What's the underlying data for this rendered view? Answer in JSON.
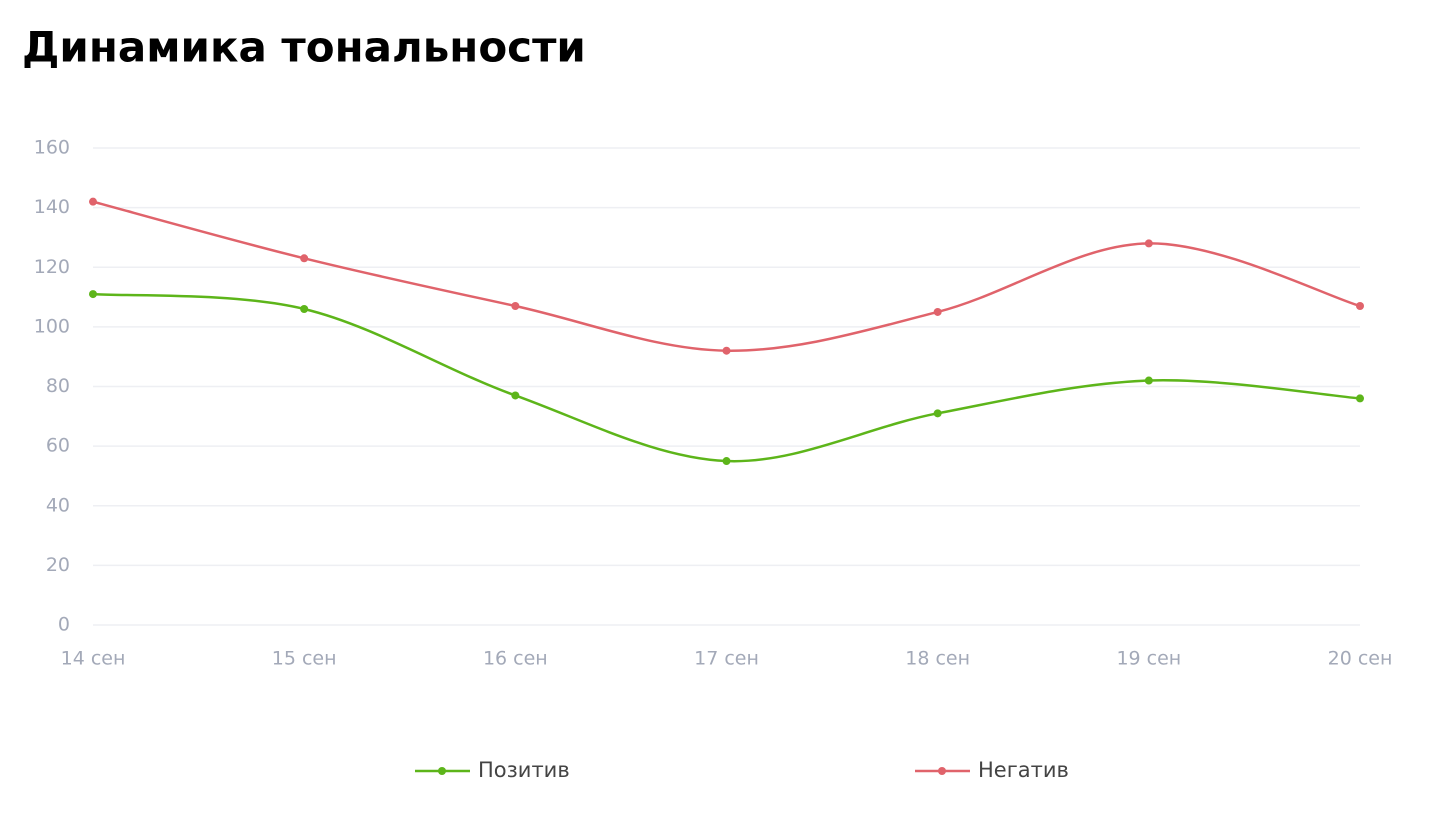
{
  "chart_data": {
    "type": "line",
    "title": "Динамика тональности",
    "categories": [
      "14 сен",
      "15 сен",
      "16 сен",
      "17 сен",
      "18 сен",
      "19 сен",
      "20 сен"
    ],
    "series": [
      {
        "name": "Позитив",
        "color": "#5db51a",
        "values": [
          111,
          106,
          77,
          55,
          71,
          82,
          76
        ]
      },
      {
        "name": "Негатив",
        "color": "#e0636b",
        "values": [
          142,
          123,
          107,
          92,
          105,
          128,
          107
        ]
      }
    ],
    "ylim": [
      0,
      160
    ],
    "yticks": [
      0,
      20,
      40,
      60,
      80,
      100,
      120,
      140,
      160
    ],
    "grid": true,
    "smooth": true,
    "legend": "bottom"
  }
}
